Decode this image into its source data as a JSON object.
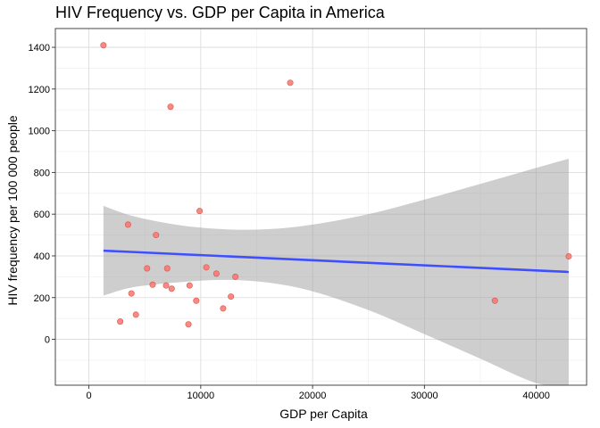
{
  "chart_data": {
    "type": "scatter",
    "title": "HIV Frequency vs. GDP per Capita in America",
    "xlabel": "GDP per Capita",
    "ylabel": "HIV frequency per 100 000 people",
    "xlim": [
      -3000,
      44500
    ],
    "ylim": [
      -220,
      1490
    ],
    "x_ticks": [
      0,
      10000,
      20000,
      30000,
      40000
    ],
    "x_tick_labels": [
      "0",
      "10000",
      "20000",
      "30000",
      "40000"
    ],
    "y_ticks": [
      0,
      200,
      400,
      600,
      800,
      1000,
      1200,
      1400
    ],
    "y_tick_labels": [
      "0",
      "200",
      "400",
      "600",
      "800",
      "1000",
      "1200",
      "1400"
    ],
    "grid": true,
    "points": {
      "color": "#F8766D",
      "x": [
        1300,
        2800,
        3500,
        3800,
        4200,
        5200,
        5700,
        6000,
        6900,
        7000,
        7300,
        7400,
        8900,
        9000,
        9600,
        9900,
        10500,
        11400,
        12000,
        12700,
        13100,
        18000,
        36300,
        42900
      ],
      "y": [
        1410,
        85,
        550,
        220,
        118,
        340,
        262,
        500,
        258,
        340,
        1115,
        243,
        72,
        258,
        185,
        615,
        345,
        315,
        148,
        205,
        300,
        1230,
        185,
        398
      ]
    },
    "regression": {
      "color": "#3F4FFF",
      "x": [
        1300,
        42900
      ],
      "y": [
        425,
        323
      ]
    },
    "confidence_band": {
      "color": "#999999",
      "x": [
        1300,
        4000,
        8000,
        12000,
        16000,
        20000,
        25000,
        30000,
        35000,
        40000,
        42900
      ],
      "upper": [
        640,
        590,
        548,
        528,
        528,
        550,
        600,
        670,
        745,
        822,
        866
      ],
      "lower": [
        210,
        250,
        273,
        285,
        272,
        230,
        140,
        25,
        -93,
        -210,
        -220
      ]
    }
  }
}
